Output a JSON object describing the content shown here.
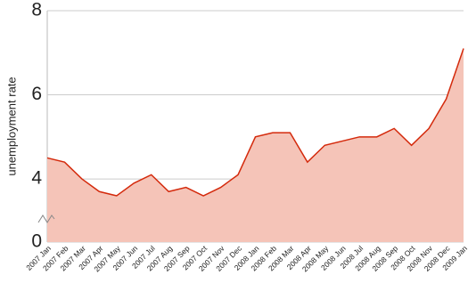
{
  "chart_data": {
    "type": "area",
    "y_label": "unemployment rate",
    "categories": [
      "2007 Jan",
      "2007 Feb",
      "2007 Mar",
      "2007 Apr",
      "2007 May",
      "2007 Jun",
      "2007 Jul",
      "2007 Aug",
      "2007 Sep",
      "2007 Oct",
      "2007 Nov",
      "2007 Dec",
      "2008 Jan",
      "2008 Feb",
      "2008 Mar",
      "2008 Apr",
      "2008 May",
      "2008 Jun",
      "2008 Jul",
      "2008 Aug",
      "2008 Sep",
      "2008 Oct",
      "2008 Nov",
      "2008 Dec",
      "2009 Jan"
    ],
    "values": [
      4.5,
      4.4,
      4.0,
      3.7,
      3.6,
      3.9,
      4.1,
      3.7,
      3.8,
      3.6,
      3.8,
      4.1,
      5.0,
      5.1,
      5.1,
      4.4,
      4.8,
      4.9,
      5.0,
      5.0,
      5.2,
      4.8,
      5.2,
      5.9,
      7.1
    ],
    "color": "#d42a0c",
    "fill_color": "#f5c4b8",
    "ylim": [
      0,
      8
    ],
    "yticks": [
      0,
      4,
      6,
      8
    ],
    "y_break": [
      0,
      2.5
    ],
    "grid": true
  }
}
